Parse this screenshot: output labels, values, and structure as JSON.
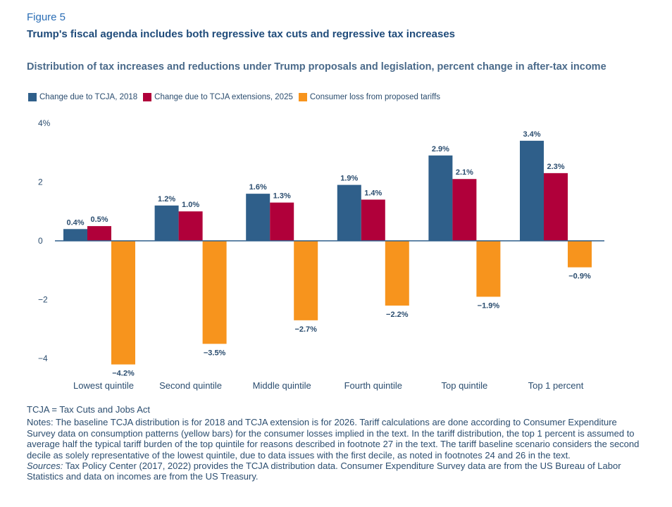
{
  "figure_label": "Figure 5",
  "headline": "Trump's fiscal agenda includes both regressive tax cuts and regressive tax increases",
  "colors": {
    "tcja2018": "#2f5f8a",
    "tcja2025": "#b0003a",
    "tariffs": "#f7941d",
    "axis": "#2f5f8a",
    "text": "#2b4d6f"
  },
  "chart_data": {
    "type": "bar",
    "title": "Distribution of tax increases and reductions under Trump proposals and legislation, percent change in after-tax income",
    "categories": [
      "Lowest quintile",
      "Second quintile",
      "Middle quintile",
      "Fourth quintile",
      "Top quintile",
      "Top 1 percent"
    ],
    "series": [
      {
        "name": "Change due to TCJA, 2018",
        "values": [
          0.4,
          1.2,
          1.6,
          1.9,
          2.9,
          3.4
        ],
        "labels": [
          "0.4%",
          "1.2%",
          "1.6%",
          "1.9%",
          "2.9%",
          "3.4%"
        ]
      },
      {
        "name": "Change due to TCJA extensions, 2025",
        "values": [
          0.5,
          1.0,
          1.3,
          1.4,
          2.1,
          2.3
        ],
        "labels": [
          "0.5%",
          "1.0%",
          "1.3%",
          "1.4%",
          "2.1%",
          "2.3%"
        ]
      },
      {
        "name": "Consumer loss from proposed tariffs",
        "values": [
          -4.2,
          -3.5,
          -2.7,
          -2.2,
          -1.9,
          -0.9
        ],
        "labels": [
          "−4.2%",
          "−3.5%",
          "−2.7%",
          "−2.2%",
          "−1.9%",
          "−0.9%"
        ]
      }
    ],
    "yticks": [
      4,
      2,
      0,
      -2,
      -4
    ],
    "ytick_labels": [
      "4%",
      "2",
      "0",
      "−2",
      "−4"
    ],
    "ylim": [
      -4.5,
      4
    ],
    "xlabel": "",
    "ylabel": "",
    "legend_position": "top-left",
    "grid": false
  },
  "footer": {
    "abbreviation": "TCJA = Tax Cuts and Jobs Act",
    "notes": "Notes: The baseline TCJA distribution is for 2018 and TCJA extension is for 2026. Tariff calculations are done according to Consumer Expenditure Survey data on consumption patterns (yellow bars) for the consumer losses implied in the text. In the tariff distribution, the top 1 percent is assumed to average half the typical tariff burden of the top quintile for reasons described in footnote 27 in the text. The tariff baseline scenario considers the second decile as solely representative of the lowest quintile, due to data issues with the first decile, as noted in footnotes 24 and 26 in the text.",
    "sources_label": "Sources:",
    "sources_text": " Tax Policy Center (2017, 2022) provides the TCJA distribution data. Consumer Expenditure Survey data are from the US Bureau of Labor Statistics and data on incomes are from the US Treasury."
  }
}
